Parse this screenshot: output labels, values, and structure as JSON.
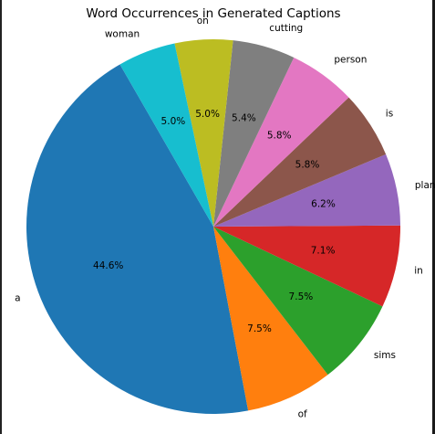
{
  "chart_data": {
    "type": "pie",
    "title": "Word Occurrences in Generated Captions",
    "start_angle_deg": 120,
    "direction": "counterclockwise",
    "slices": [
      {
        "label": "a",
        "value": 44.6,
        "pct_text": "44.6%",
        "color": "#1f77b4"
      },
      {
        "label": "of",
        "value": 7.5,
        "pct_text": "7.5%",
        "color": "#ff7f0e"
      },
      {
        "label": "sims",
        "value": 7.5,
        "pct_text": "7.5%",
        "color": "#2ca02c"
      },
      {
        "label": "in",
        "value": 7.1,
        "pct_text": "7.1%",
        "color": "#d62728"
      },
      {
        "label": "plank",
        "value": 6.2,
        "pct_text": "6.2%",
        "color": "#9467bd"
      },
      {
        "label": "is",
        "value": 5.8,
        "pct_text": "5.8%",
        "color": "#8c564b"
      },
      {
        "label": "person",
        "value": 5.8,
        "pct_text": "5.8%",
        "color": "#e377c2"
      },
      {
        "label": "cutting",
        "value": 5.4,
        "pct_text": "5.4%",
        "color": "#7f7f7f"
      },
      {
        "label": "on",
        "value": 5.0,
        "pct_text": "5.0%",
        "color": "#bcbd22"
      },
      {
        "label": "woman",
        "value": 5.0,
        "pct_text": "5.0%",
        "color": "#17becf"
      }
    ]
  }
}
